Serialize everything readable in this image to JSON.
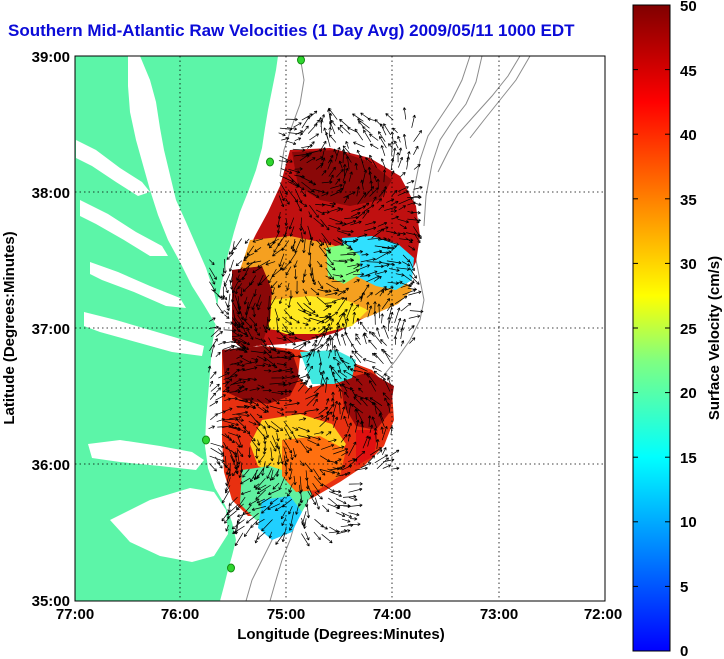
{
  "title": "Southern Mid-Atlantic Raw Velocities (1 Day Avg) 2009/05/11 1000 EDT",
  "axes": {
    "xlabel": "Longitude (Degrees:Minutes)",
    "ylabel": "Latitude (Degrees:Minutes)",
    "x_ticks": [
      "77:00",
      "76:00",
      "75:00",
      "74:00",
      "73:00",
      "72:00"
    ],
    "y_ticks": [
      "39:00",
      "38:00",
      "37:00",
      "36:00",
      "35:00"
    ],
    "xlim": [
      -77,
      -72
    ],
    "ylim": [
      35,
      39
    ],
    "grid": "dotted"
  },
  "colorbar": {
    "label": "Surface Velocity (cm/s)",
    "ticks": [
      "50",
      "45",
      "40",
      "35",
      "30",
      "25",
      "20",
      "15",
      "10",
      "5",
      "0"
    ],
    "range": [
      0,
      50
    ],
    "colormap": "jet"
  },
  "colors": {
    "land": "#5cf5a8",
    "title": "#0b0bd8",
    "station": "#2fd62f",
    "contour": "#8c8c8c"
  }
}
